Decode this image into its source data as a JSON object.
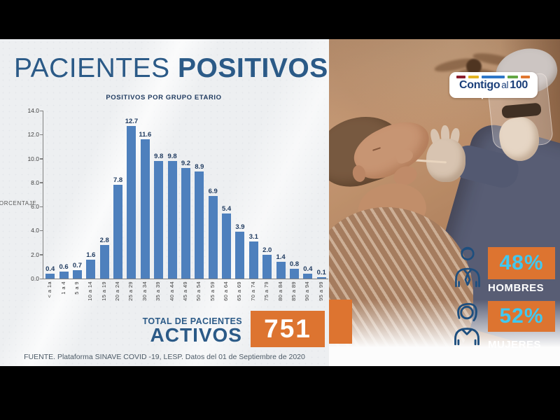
{
  "header": {
    "title_regular": "PACIENTES",
    "title_bold": "POSITIVOS"
  },
  "chart_data": {
    "type": "bar",
    "title": "POSITIVOS POR GRUPO ETARIO",
    "xlabel": "",
    "ylabel": "PORCENTAJE",
    "ylim": [
      0,
      14
    ],
    "yticks": [
      "14.0",
      "12.0",
      "10.0",
      "8.0",
      "6.0",
      "4.0",
      "2.0",
      "0.0"
    ],
    "grid": false,
    "legend": false,
    "bar_color": "#4e80bd",
    "categories": [
      "< a 1a",
      "1 a 4",
      "5 a 9",
      "10 a 14",
      "15 a 19",
      "20 a 24",
      "25 a 29",
      "30 a 34",
      "35 a 39",
      "40 a 44",
      "45 a 49",
      "50 a 54",
      "55 a 59",
      "60 a 64",
      "65 a 69",
      "70 a 74",
      "75 a 79",
      "80 a 84",
      "85 a 89",
      "90 a 94",
      "95 a 99"
    ],
    "values": [
      0.4,
      0.6,
      0.7,
      1.6,
      2.8,
      7.8,
      12.7,
      11.6,
      9.8,
      9.8,
      9.2,
      8.9,
      6.9,
      5.4,
      3.9,
      3.1,
      2.0,
      1.4,
      0.8,
      0.4,
      0.1
    ]
  },
  "total": {
    "label_line1": "TOTAL DE PACIENTES",
    "label_line2": "ACTIVOS",
    "value": "751"
  },
  "source": "FUENTE. Plataforma SINAVE COVID -19, LESP. Datos del 01 de Septiembre de 2020",
  "logo": {
    "part1": "Contigo",
    "part2": "al",
    "part3": "100"
  },
  "stats": [
    {
      "value": "48%",
      "label": "HOMBRES"
    },
    {
      "value": "52%",
      "label": "MUJERES"
    }
  ],
  "colors": {
    "accent_orange": "#dd7430",
    "accent_cyan": "#41c8f0",
    "navy": "#2b5a87",
    "bar_blue": "#4e80bd"
  }
}
